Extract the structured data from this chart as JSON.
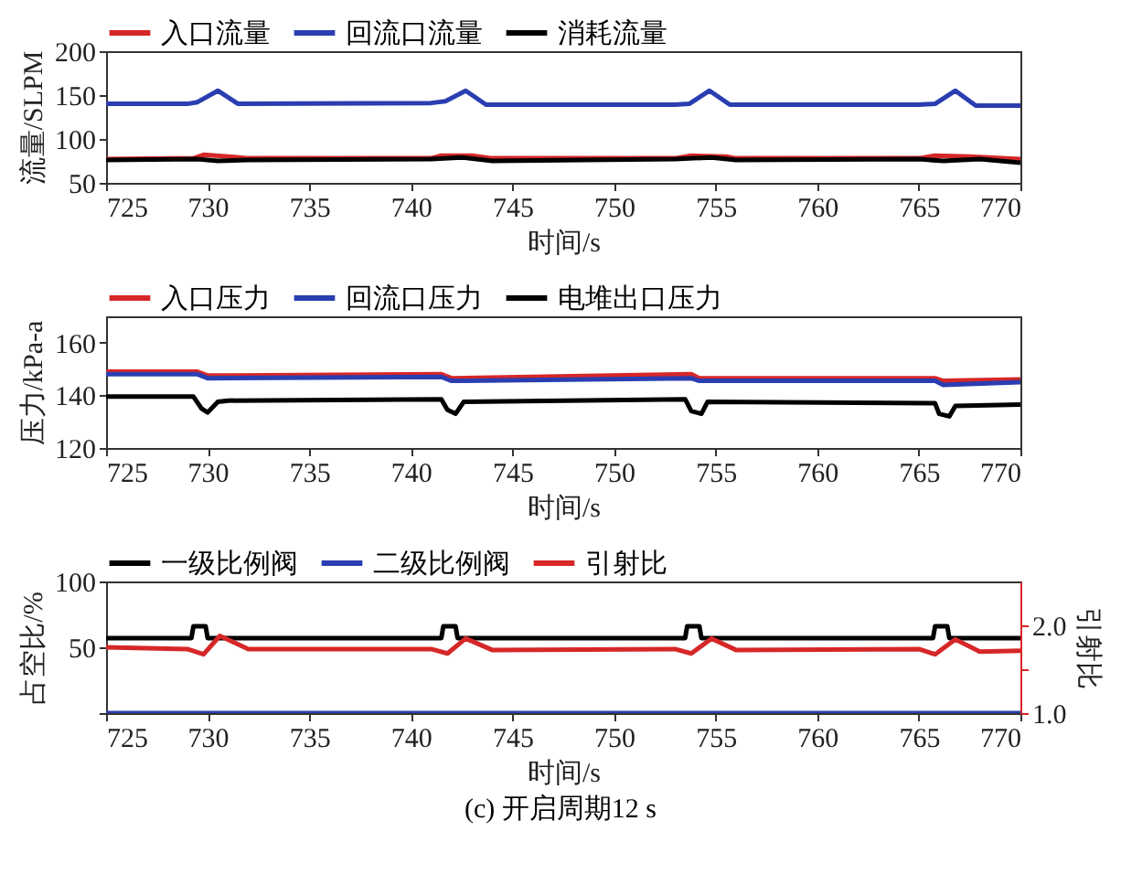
{
  "chart_data": [
    {
      "type": "line",
      "xlabel": "时间/s",
      "ylabel": "流量/SLPM",
      "xlim": [
        725,
        770
      ],
      "xticks": [
        725,
        730,
        735,
        740,
        745,
        750,
        755,
        760,
        765,
        770
      ],
      "ylim": [
        50,
        200
      ],
      "yticks": [
        50,
        100,
        150,
        200
      ],
      "legend": "top",
      "series": [
        {
          "name": "入口流量",
          "color": "#d62728",
          "x": [
            725,
            729.3,
            729.8,
            731,
            732,
            741,
            741.5,
            743,
            744,
            753,
            753.8,
            755.5,
            756,
            765,
            765.8,
            767.5,
            770
          ],
          "values": [
            77,
            78,
            82,
            80,
            78,
            78,
            81,
            81,
            78,
            78,
            81,
            80,
            78,
            78,
            81,
            80,
            77
          ]
        },
        {
          "name": "回流口流量",
          "color": "#2a3eb1",
          "x": [
            725,
            729,
            729.5,
            730.5,
            731.5,
            741,
            741.7,
            742.7,
            743.7,
            753,
            753.7,
            754.7,
            755.7,
            765,
            765.8,
            766.8,
            767.8,
            770
          ],
          "values": [
            140,
            140,
            142,
            155,
            140,
            141,
            143,
            155,
            139,
            139,
            140,
            155,
            139,
            139,
            140,
            155,
            138,
            138
          ]
        },
        {
          "name": "消耗流量",
          "color": "#000000",
          "x": [
            725,
            729.5,
            730.5,
            732,
            741,
            742.5,
            744,
            753,
            754.8,
            756,
            765,
            766.2,
            768,
            770
          ],
          "values": [
            76,
            77,
            75,
            76,
            77,
            79,
            75,
            77,
            79,
            76,
            77,
            75,
            77,
            73
          ]
        }
      ]
    },
    {
      "type": "line",
      "xlabel": "时间/s",
      "ylabel": "压力/kPa-a",
      "xlim": [
        725,
        770
      ],
      "xticks": [
        725,
        730,
        735,
        740,
        745,
        750,
        755,
        760,
        765,
        770
      ],
      "ylim": [
        120,
        170
      ],
      "yticks": [
        120,
        140,
        160
      ],
      "legend": "top",
      "series": [
        {
          "name": "入口压力",
          "color": "#d62728",
          "x": [
            725,
            729.5,
            730,
            741.5,
            742,
            753.8,
            754.2,
            765.8,
            766.2,
            770
          ],
          "values": [
            149,
            149,
            147.5,
            148,
            146.5,
            148,
            146.5,
            146.5,
            145.5,
            146
          ]
        },
        {
          "name": "回流口压力",
          "color": "#2a3eb1",
          "x": [
            725,
            729.5,
            730,
            741.5,
            742,
            753.8,
            754.2,
            765.8,
            766.2,
            770
          ],
          "values": [
            148,
            148,
            146.5,
            147,
            145.5,
            146.5,
            145.5,
            145.5,
            144,
            145
          ]
        },
        {
          "name": "电堆出口压力",
          "color": "#000000",
          "x": [
            725,
            729.3,
            729.7,
            730,
            730.5,
            731,
            741.5,
            741.8,
            742.2,
            742.6,
            753.5,
            753.8,
            754.3,
            754.6,
            765.8,
            766,
            766.5,
            766.8,
            770
          ],
          "values": [
            139.5,
            139.5,
            135,
            133.5,
            137.5,
            138,
            138.5,
            134.5,
            133,
            137.5,
            138.5,
            134,
            133,
            137.5,
            137,
            133,
            132,
            136,
            136.5
          ]
        }
      ]
    },
    {
      "type": "line",
      "xlabel": "时间/s",
      "ylabel": "占空比/%",
      "y2label": "引射比",
      "xlim": [
        725,
        770
      ],
      "xticks": [
        725,
        730,
        735,
        740,
        745,
        750,
        755,
        760,
        765,
        770
      ],
      "ylim": [
        0,
        100
      ],
      "yticks": [
        {
          "value": 0,
          "label": null
        },
        50,
        100
      ],
      "y2lim": [
        1,
        2.5
      ],
      "y2ticks": [
        {
          "value": 1,
          "label": "1.0"
        },
        {
          "value": 1.5,
          "label": null
        },
        {
          "value": 2,
          "label": "2.0"
        }
      ],
      "legend": "top",
      "annotations": [
        "(c) 开启周期12 s"
      ],
      "series": [
        {
          "name": "一级比例阀",
          "color": "#000000",
          "x": [
            725,
            729.2,
            729.3,
            729.9,
            730,
            741.5,
            741.6,
            742.2,
            742.3,
            753.5,
            753.6,
            754.2,
            754.3,
            765.7,
            765.8,
            766.4,
            766.5,
            770
          ],
          "values": [
            57,
            57,
            66,
            66,
            57,
            57,
            66,
            66,
            57,
            57,
            66,
            66,
            57,
            57,
            66,
            66,
            57,
            57
          ]
        },
        {
          "name": "二级比例阀",
          "color": "#2a3eb1",
          "x": [
            725,
            770
          ],
          "values": [
            0,
            0
          ]
        },
        {
          "name": "引射比",
          "color": "#d62728",
          "axis": "y2",
          "x": [
            725,
            729,
            729.8,
            730.6,
            732,
            741,
            741.8,
            742.7,
            744,
            753,
            753.8,
            754.8,
            756,
            765,
            765.8,
            766.8,
            768,
            770
          ],
          "values": [
            1.75,
            1.73,
            1.67,
            1.88,
            1.73,
            1.73,
            1.68,
            1.85,
            1.72,
            1.73,
            1.68,
            1.85,
            1.72,
            1.73,
            1.67,
            1.84,
            1.7,
            1.71
          ]
        }
      ]
    }
  ]
}
